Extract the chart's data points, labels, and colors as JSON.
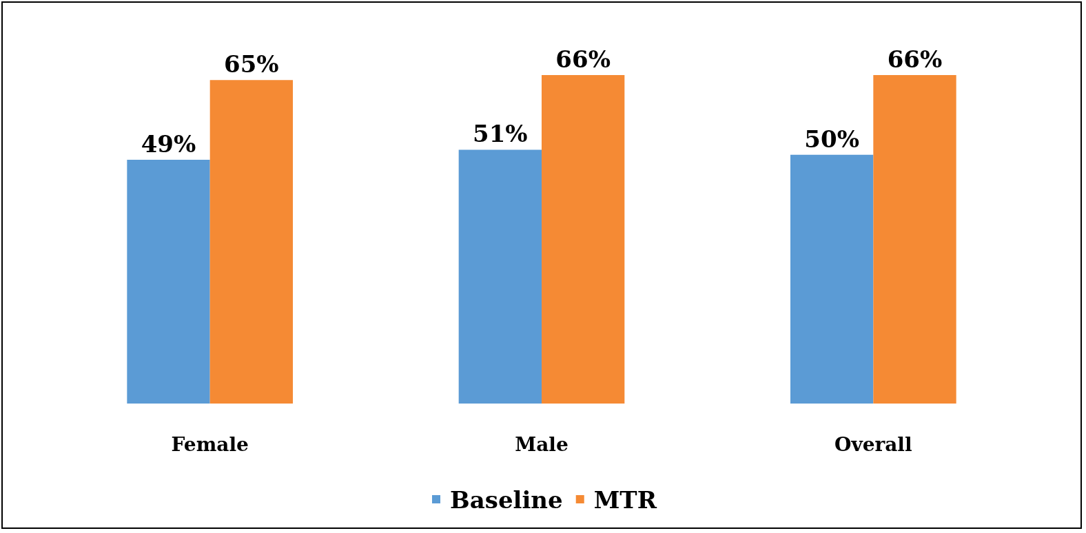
{
  "chart_data": {
    "type": "bar",
    "categories": [
      "Female",
      "Male",
      "Overall"
    ],
    "series": [
      {
        "name": "Baseline",
        "color": "#5b9bd5",
        "values": [
          49,
          51,
          50
        ],
        "value_labels": [
          "49%",
          "51%",
          "50%"
        ]
      },
      {
        "name": "MTR",
        "color": "#f58a34",
        "values": [
          65,
          66,
          66
        ],
        "value_labels": [
          "65%",
          "66%",
          "66%"
        ]
      }
    ],
    "grid": false,
    "legend": "bottom"
  }
}
